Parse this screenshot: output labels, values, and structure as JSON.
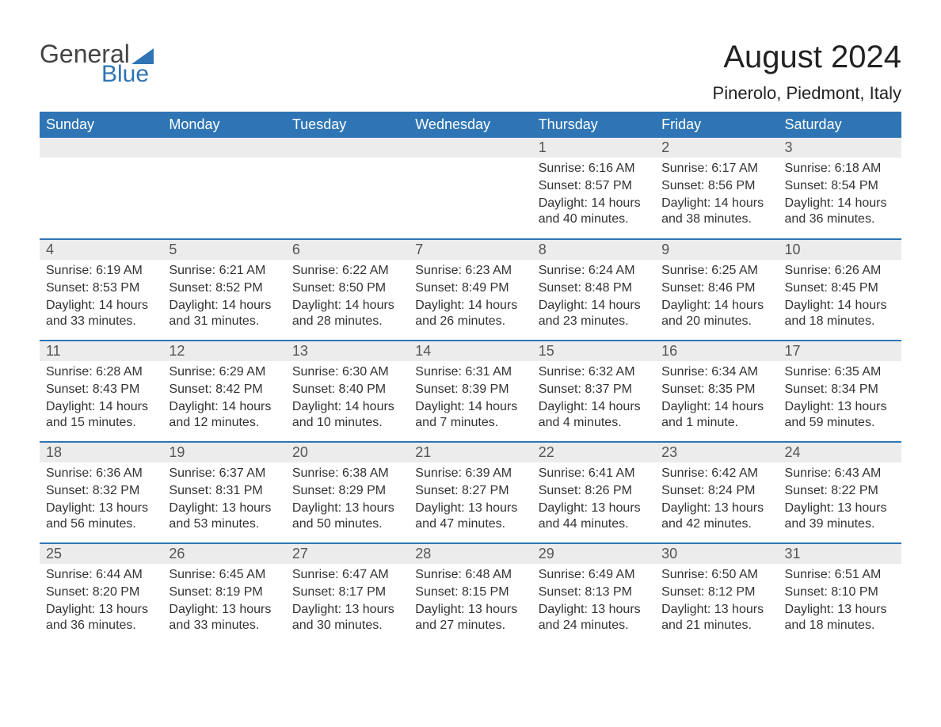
{
  "brand": {
    "word1": "General",
    "word2": "Blue"
  },
  "title": "August 2024",
  "location": "Pinerolo, Piedmont, Italy",
  "colors": {
    "header_bg": "#2f75b5",
    "header_text": "#ffffff",
    "daynum_bg": "#ececec",
    "row_border": "#2f75b5",
    "body_text": "#333333",
    "title_text": "#222222",
    "background": "#ffffff"
  },
  "layout": {
    "columns": 7,
    "rows": 5,
    "first_day_column_index": 4
  },
  "weekdays": [
    "Sunday",
    "Monday",
    "Tuesday",
    "Wednesday",
    "Thursday",
    "Friday",
    "Saturday"
  ],
  "days": [
    {
      "n": 1,
      "sunrise": "6:16 AM",
      "sunset": "8:57 PM",
      "daylight": "14 hours and 40 minutes."
    },
    {
      "n": 2,
      "sunrise": "6:17 AM",
      "sunset": "8:56 PM",
      "daylight": "14 hours and 38 minutes."
    },
    {
      "n": 3,
      "sunrise": "6:18 AM",
      "sunset": "8:54 PM",
      "daylight": "14 hours and 36 minutes."
    },
    {
      "n": 4,
      "sunrise": "6:19 AM",
      "sunset": "8:53 PM",
      "daylight": "14 hours and 33 minutes."
    },
    {
      "n": 5,
      "sunrise": "6:21 AM",
      "sunset": "8:52 PM",
      "daylight": "14 hours and 31 minutes."
    },
    {
      "n": 6,
      "sunrise": "6:22 AM",
      "sunset": "8:50 PM",
      "daylight": "14 hours and 28 minutes."
    },
    {
      "n": 7,
      "sunrise": "6:23 AM",
      "sunset": "8:49 PM",
      "daylight": "14 hours and 26 minutes."
    },
    {
      "n": 8,
      "sunrise": "6:24 AM",
      "sunset": "8:48 PM",
      "daylight": "14 hours and 23 minutes."
    },
    {
      "n": 9,
      "sunrise": "6:25 AM",
      "sunset": "8:46 PM",
      "daylight": "14 hours and 20 minutes."
    },
    {
      "n": 10,
      "sunrise": "6:26 AM",
      "sunset": "8:45 PM",
      "daylight": "14 hours and 18 minutes."
    },
    {
      "n": 11,
      "sunrise": "6:28 AM",
      "sunset": "8:43 PM",
      "daylight": "14 hours and 15 minutes."
    },
    {
      "n": 12,
      "sunrise": "6:29 AM",
      "sunset": "8:42 PM",
      "daylight": "14 hours and 12 minutes."
    },
    {
      "n": 13,
      "sunrise": "6:30 AM",
      "sunset": "8:40 PM",
      "daylight": "14 hours and 10 minutes."
    },
    {
      "n": 14,
      "sunrise": "6:31 AM",
      "sunset": "8:39 PM",
      "daylight": "14 hours and 7 minutes."
    },
    {
      "n": 15,
      "sunrise": "6:32 AM",
      "sunset": "8:37 PM",
      "daylight": "14 hours and 4 minutes."
    },
    {
      "n": 16,
      "sunrise": "6:34 AM",
      "sunset": "8:35 PM",
      "daylight": "14 hours and 1 minute."
    },
    {
      "n": 17,
      "sunrise": "6:35 AM",
      "sunset": "8:34 PM",
      "daylight": "13 hours and 59 minutes."
    },
    {
      "n": 18,
      "sunrise": "6:36 AM",
      "sunset": "8:32 PM",
      "daylight": "13 hours and 56 minutes."
    },
    {
      "n": 19,
      "sunrise": "6:37 AM",
      "sunset": "8:31 PM",
      "daylight": "13 hours and 53 minutes."
    },
    {
      "n": 20,
      "sunrise": "6:38 AM",
      "sunset": "8:29 PM",
      "daylight": "13 hours and 50 minutes."
    },
    {
      "n": 21,
      "sunrise": "6:39 AM",
      "sunset": "8:27 PM",
      "daylight": "13 hours and 47 minutes."
    },
    {
      "n": 22,
      "sunrise": "6:41 AM",
      "sunset": "8:26 PM",
      "daylight": "13 hours and 44 minutes."
    },
    {
      "n": 23,
      "sunrise": "6:42 AM",
      "sunset": "8:24 PM",
      "daylight": "13 hours and 42 minutes."
    },
    {
      "n": 24,
      "sunrise": "6:43 AM",
      "sunset": "8:22 PM",
      "daylight": "13 hours and 39 minutes."
    },
    {
      "n": 25,
      "sunrise": "6:44 AM",
      "sunset": "8:20 PM",
      "daylight": "13 hours and 36 minutes."
    },
    {
      "n": 26,
      "sunrise": "6:45 AM",
      "sunset": "8:19 PM",
      "daylight": "13 hours and 33 minutes."
    },
    {
      "n": 27,
      "sunrise": "6:47 AM",
      "sunset": "8:17 PM",
      "daylight": "13 hours and 30 minutes."
    },
    {
      "n": 28,
      "sunrise": "6:48 AM",
      "sunset": "8:15 PM",
      "daylight": "13 hours and 27 minutes."
    },
    {
      "n": 29,
      "sunrise": "6:49 AM",
      "sunset": "8:13 PM",
      "daylight": "13 hours and 24 minutes."
    },
    {
      "n": 30,
      "sunrise": "6:50 AM",
      "sunset": "8:12 PM",
      "daylight": "13 hours and 21 minutes."
    },
    {
      "n": 31,
      "sunrise": "6:51 AM",
      "sunset": "8:10 PM",
      "daylight": "13 hours and 18 minutes."
    }
  ],
  "labels": {
    "sunrise": "Sunrise:",
    "sunset": "Sunset:",
    "daylight": "Daylight:"
  }
}
